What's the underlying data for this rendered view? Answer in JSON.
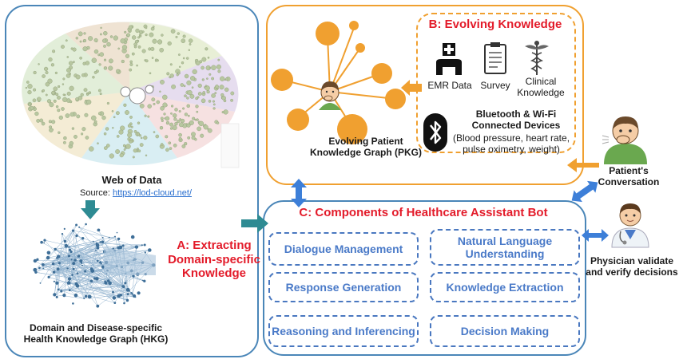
{
  "panel_a": {
    "web_title": "Web of Data",
    "source_label": "Source: ",
    "source_link": "https://lod-cloud.net/",
    "hkg_line1": "Domain and Disease-specific",
    "hkg_line2": "Health Knowledge Graph (HKG)",
    "extract_line1": "A: Extracting",
    "extract_line2": "Domain-specific",
    "extract_line3": "Knowledge"
  },
  "panel_b": {
    "title": "B: Evolving Knowledge",
    "emr": "EMR Data",
    "survey": "Survey",
    "clinical_line1": "Clinical",
    "clinical_line2": "Knowledge",
    "devices_line1": "Bluetooth & Wi-Fi",
    "devices_line2": "Connected Devices",
    "devices_line3": "(Blood pressure, heart rate,",
    "devices_line4": "pulse oximetry, weight)"
  },
  "pkg": {
    "line1": "Evolving Patient",
    "line2": "Knowledge Graph (PKG)"
  },
  "panel_c": {
    "title": "C: Components of Healthcare Assistant Bot",
    "components": [
      "Dialogue Management",
      "Natural Language Understanding",
      "Response Generation",
      "Knowledge Extraction",
      "Reasoning and Inferencing",
      "Decision Making"
    ]
  },
  "right": {
    "patient_line1": "Patient's",
    "patient_line2": "Conversation",
    "physician_line1": "Physician validate",
    "physician_line2": "and verify decisions"
  },
  "colors": {
    "orange": "#f0a030",
    "blue_border": "#4a86b8",
    "teal_arrow": "#2e8b93",
    "red_title": "#e31b2a",
    "component_blue": "#4a7ac8"
  }
}
